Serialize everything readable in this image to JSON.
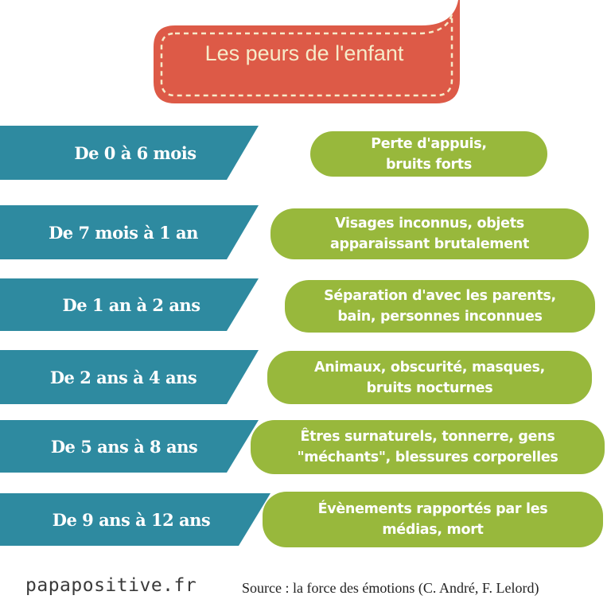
{
  "title": "Les peurs de l'enfant",
  "colors": {
    "title_bg": "#dd5a47",
    "title_text": "#f6ebc9",
    "age_band": "#2e8aa0",
    "fear_pill": "#98b83c"
  },
  "rows": [
    {
      "age": "De 0 à 6 mois",
      "fear_line1": "Perte d'appuis,",
      "fear_line2": "bruits forts"
    },
    {
      "age": "De 7 mois à 1 an",
      "fear_line1": "Visages inconnus, objets",
      "fear_line2": "apparaissant brutalement"
    },
    {
      "age": "De 1 an à 2 ans",
      "fear_line1": "Séparation d'avec les parents,",
      "fear_line2": "bain, personnes inconnues"
    },
    {
      "age": "De 2 ans à 4 ans",
      "fear_line1": "Animaux, obscurité, masques,",
      "fear_line2": "bruits nocturnes"
    },
    {
      "age": "De 5 ans à 8 ans",
      "fear_line1": "Êtres surnaturels, tonnerre, gens",
      "fear_line2": "\"méchants\", blessures corporelles"
    },
    {
      "age": "De 9 ans à 12 ans",
      "fear_line1": "Évènements rapportés par les",
      "fear_line2": "médias, mort"
    }
  ],
  "footer": {
    "brand": "papapositive.fr",
    "source": "Source : la force des émotions (C. André, F. Lelord)"
  }
}
